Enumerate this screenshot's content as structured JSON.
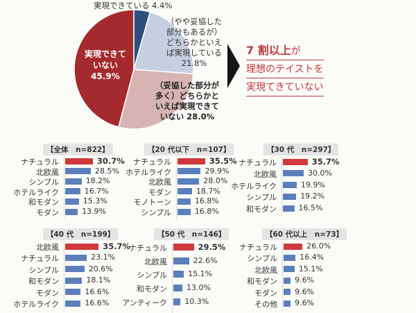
{
  "pie": {
    "chart_data": {
      "type": "pie",
      "slices": [
        {
          "label": "実現できている",
          "value": 4.4,
          "color": "#2e4f7d"
        },
        {
          "label": "（やや妥協した部分もあるが）どちらかといえば実現している",
          "value": 21.8,
          "color": "#c5cfe0"
        },
        {
          "label": "（妥協した部分が多く）どちらかといえば実現できていない",
          "value": 28.0,
          "color": "#d7b4b3"
        },
        {
          "label": "実現できていない",
          "value": 45.9,
          "color": "#a52a2d"
        }
      ]
    },
    "labels": {
      "s1": "実現できている 4.4%",
      "s2_lines": [
        "（やや妥協した",
        "部分もあるが）",
        "どちらかといえ",
        "ば実現している",
        "21.8%"
      ],
      "s3_lines": [
        "（妥協した部分が",
        "多く）どちらかと",
        "いえば実現できて",
        "いない 28.0%"
      ],
      "s4_lines": [
        "実現できて",
        "いない",
        "45.9%"
      ]
    }
  },
  "callout": {
    "emph": "7 割以上",
    "line1_rest": "が",
    "line2": "理想のテイストを",
    "line3": "実現てきていない"
  },
  "colors": {
    "highlight": "#d0383a",
    "bar": "#5b7fbb"
  },
  "chart_data": [
    {
      "type": "bar",
      "title": "【全体　n=822】",
      "categories": [
        "ナチュラル",
        "北欧風",
        "シンプル",
        "ホテルライク",
        "和モダン",
        "モダン"
      ],
      "values": [
        30.7,
        28.5,
        18.2,
        16.7,
        15.3,
        13.9
      ],
      "value_labels": [
        "30.7%",
        "28.5%",
        "18.2%",
        "16.7%",
        "15.3%",
        "13.9%"
      ]
    },
    {
      "type": "bar",
      "title": "【20 代以下　n=107】",
      "categories": [
        "ナチュラル",
        "ホテルライク",
        "北欧風",
        "モダン",
        "モノトーン",
        "シンプル"
      ],
      "values": [
        35.5,
        29.9,
        28.0,
        18.7,
        16.8,
        16.8
      ],
      "value_labels": [
        "35.5%",
        "29.9%",
        "28.0%",
        "18.7%",
        "16.8%",
        "16.8%"
      ]
    },
    {
      "type": "bar",
      "title": "【30 代　n=297】",
      "categories": [
        "ナチュラル",
        "北欧風",
        "ホテルライク",
        "シンプル",
        "和モダン"
      ],
      "values": [
        35.7,
        30.0,
        19.9,
        19.2,
        16.5
      ],
      "value_labels": [
        "35.7%",
        "30.0%",
        "19.9%",
        "19.2%",
        "16.5%"
      ]
    },
    {
      "type": "bar",
      "title": "【40 代　n=199】",
      "categories": [
        "北欧風",
        "ナチュラル",
        "シンプル",
        "和モダン",
        "モダン",
        "ホテルライク"
      ],
      "values": [
        35.7,
        23.1,
        20.6,
        18.1,
        16.6,
        16.6
      ],
      "value_labels": [
        "35.7%",
        "23.1%",
        "20.6%",
        "18.1%",
        "16.6%",
        "16.6%"
      ]
    },
    {
      "type": "bar",
      "title": "【50 代　n=146】",
      "categories": [
        "ナチュラル",
        "北欧風",
        "シンプル",
        "和モダン",
        "アンティーク"
      ],
      "values": [
        29.5,
        22.6,
        15.1,
        13.0,
        10.3
      ],
      "value_labels": [
        "29.5%",
        "22.6%",
        "15.1%",
        "13.0%",
        "10.3%"
      ]
    },
    {
      "type": "bar",
      "title": "【60 代以上　n=73】",
      "categories": [
        "ナチュラル",
        "シンプル",
        "北欧風",
        "和モダン",
        "モダン",
        "その他"
      ],
      "values": [
        26.0,
        16.4,
        15.1,
        9.6,
        9.6,
        9.6
      ],
      "value_labels": [
        "26.0%",
        "16.4%",
        "15.1%",
        "9.6%",
        "9.6%",
        "9.6%"
      ]
    }
  ]
}
